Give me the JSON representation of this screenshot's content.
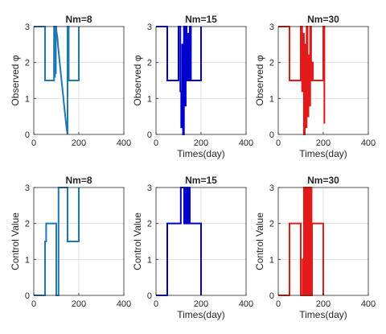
{
  "chart_data": [
    {
      "type": "line",
      "title": "Nm=8",
      "xlabel": "",
      "ylabel": "Observed φ",
      "xlim": [
        0,
        400
      ],
      "ylim": [
        0,
        3
      ],
      "xticks": [
        0,
        200,
        400
      ],
      "yticks": [
        0,
        1,
        2,
        3
      ],
      "grid": true,
      "color": "#1f77b4",
      "series": [
        {
          "x": [
            0,
            50,
            50,
            90,
            90,
            92,
            92,
            94,
            94,
            96,
            96,
            98,
            98,
            100,
            100,
            105,
            108,
            112,
            116,
            120,
            125,
            130,
            135,
            140,
            145,
            150,
            150,
            155,
            155,
            175,
            175,
            200,
            200,
            200
          ],
          "y": [
            3,
            3,
            1.5,
            1.5,
            3,
            3,
            1.6,
            1.6,
            3,
            3,
            1.7,
            1.7,
            3,
            3,
            2.9,
            2.7,
            2.45,
            2.2,
            1.95,
            1.7,
            1.4,
            1.1,
            0.8,
            0.5,
            0.2,
            0,
            3,
            3,
            1.5,
            1.5,
            1.5,
            1.5,
            3,
            1.5
          ]
        }
      ]
    },
    {
      "type": "line",
      "title": "Nm=15",
      "xlabel": "Times(day)",
      "ylabel": "Observed φ",
      "xlim": [
        0,
        400
      ],
      "ylim": [
        0,
        3
      ],
      "xticks": [
        0,
        200,
        400
      ],
      "yticks": [
        0,
        1,
        2,
        3
      ],
      "grid": true,
      "color": "#0000cc",
      "series": [
        {
          "x": [
            0,
            50,
            50,
            100,
            100,
            108,
            108,
            112,
            112,
            116,
            116,
            120,
            120,
            124,
            124,
            128,
            128,
            132,
            132,
            136,
            136,
            140,
            140,
            144,
            144,
            150,
            150,
            155,
            155,
            200,
            200,
            200
          ],
          "y": [
            3,
            3,
            1.5,
            1.5,
            3,
            3,
            1.2,
            1.2,
            0.2,
            0.2,
            2.5,
            2.5,
            0,
            0,
            3,
            3,
            0.8,
            0.8,
            3,
            3,
            1.5,
            1.5,
            2.8,
            2.8,
            1.5,
            1.5,
            3,
            3,
            1.5,
            1.5,
            3,
            2.1
          ]
        }
      ]
    },
    {
      "type": "line",
      "title": "Nm=30",
      "xlabel": "Times(day)",
      "ylabel": "Observed φ",
      "xlim": [
        0,
        400
      ],
      "ylim": [
        0,
        3
      ],
      "xticks": [
        0,
        200,
        400
      ],
      "yticks": [
        0,
        1,
        2,
        3
      ],
      "grid": true,
      "color": "#e31a1a",
      "series": [
        {
          "x": [
            0,
            50,
            50,
            100,
            100,
            106,
            106,
            110,
            110,
            114,
            114,
            118,
            118,
            122,
            122,
            126,
            126,
            130,
            130,
            134,
            134,
            138,
            138,
            142,
            142,
            146,
            146,
            150,
            150,
            154,
            154,
            200,
            200,
            205,
            205
          ],
          "y": [
            3,
            3,
            1.5,
            1.5,
            3,
            3,
            1.2,
            1.2,
            2.8,
            2.8,
            0,
            0,
            2.5,
            2.5,
            0.2,
            0.2,
            3,
            3,
            0.5,
            0.5,
            2.2,
            2.2,
            0.8,
            0.8,
            3,
            3,
            1.5,
            1.5,
            2,
            2,
            1.5,
            1.5,
            3,
            3,
            0.3
          ]
        }
      ]
    },
    {
      "type": "line",
      "title": "Nm=8",
      "xlabel": "",
      "ylabel": "Control Value",
      "xlim": [
        0,
        400
      ],
      "ylim": [
        0,
        3
      ],
      "xticks": [
        0,
        200,
        400
      ],
      "yticks": [
        0,
        1,
        2,
        3
      ],
      "grid": true,
      "color": "#1f77b4",
      "series": [
        {
          "x": [
            0,
            50,
            50,
            55,
            55,
            100,
            100,
            110,
            110,
            150,
            150,
            155,
            155,
            200,
            200,
            200
          ],
          "y": [
            0,
            0,
            1.5,
            1.5,
            2,
            2,
            0,
            0,
            3,
            3,
            1.5,
            1.5,
            1.5,
            1.5,
            3,
            2.2
          ]
        }
      ]
    },
    {
      "type": "line",
      "title": "Nm=15",
      "xlabel": "Times(day)",
      "ylabel": "Control Value",
      "xlim": [
        0,
        400
      ],
      "ylim": [
        0,
        3
      ],
      "xticks": [
        0,
        200,
        400
      ],
      "yticks": [
        0,
        1,
        2,
        3
      ],
      "grid": true,
      "color": "#0000cc",
      "series": [
        {
          "x": [
            0,
            50,
            50,
            110,
            110,
            125,
            125,
            128,
            128,
            131,
            131,
            134,
            134,
            137,
            137,
            140,
            140,
            143,
            143,
            146,
            146,
            150,
            150,
            200,
            200
          ],
          "y": [
            0,
            0,
            2,
            2,
            3,
            3,
            2,
            2,
            3,
            3,
            2,
            2,
            3,
            3,
            2,
            2,
            3,
            3,
            2,
            2,
            3,
            3,
            2,
            2,
            0
          ]
        }
      ]
    },
    {
      "type": "line",
      "title": "Nm=30",
      "xlabel": "Times(day)",
      "ylabel": "Control Value",
      "xlim": [
        0,
        400
      ],
      "ylim": [
        0,
        3
      ],
      "xticks": [
        0,
        200,
        400
      ],
      "yticks": [
        0,
        1,
        2,
        3
      ],
      "grid": true,
      "color": "#e31a1a",
      "series": [
        {
          "x": [
            0,
            50,
            50,
            100,
            100,
            108,
            108,
            112,
            112,
            114,
            114,
            116,
            116,
            118,
            118,
            120,
            120,
            122,
            122,
            124,
            124,
            126,
            126,
            128,
            128,
            130,
            130,
            132,
            132,
            134,
            134,
            136,
            136,
            138,
            138,
            140,
            140,
            142,
            142,
            144,
            144,
            146,
            146,
            148,
            148,
            150,
            150,
            200,
            200
          ],
          "y": [
            0,
            0,
            2,
            2,
            0,
            0,
            1,
            1,
            0,
            0,
            3,
            3,
            0,
            0,
            3,
            3,
            0,
            0,
            3,
            3,
            0,
            0,
            3,
            3,
            0,
            0,
            3,
            3,
            0,
            0,
            3,
            3,
            0,
            0,
            3,
            3,
            0,
            0,
            3,
            3,
            0,
            0,
            3,
            3,
            0,
            0,
            2,
            2,
            0
          ]
        }
      ]
    }
  ]
}
